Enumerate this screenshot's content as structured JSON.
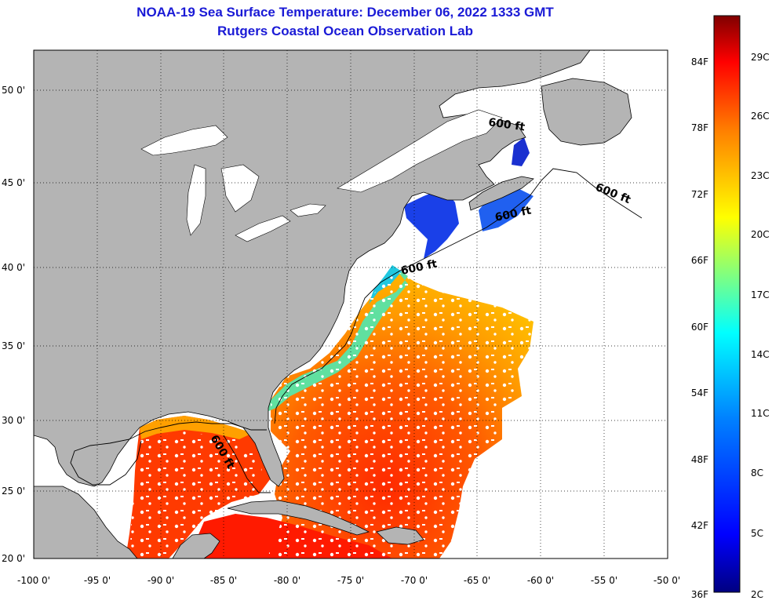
{
  "header": {
    "title": "NOAA-19 Sea Surface Temperature:  December 06, 2022 1333 GMT",
    "subtitle": "Rutgers Coastal Ocean Observation Lab"
  },
  "map": {
    "lat_labels": [
      "50 0'",
      "45 0'",
      "40 0'",
      "35 0'",
      "30 0'",
      "25 0'",
      "20 0'"
    ],
    "lon_labels": [
      "-100 0'",
      "-95 0'",
      "-90 0'",
      "-85 0'",
      "-80 0'",
      "-75 0'",
      "-70 0'",
      "-65 0'",
      "-60 0'",
      "-55 0'",
      "-50 0'"
    ],
    "contour_label": "600 ft",
    "colors": {
      "land": "#b4b4b4",
      "water_nodata": "#ffffff",
      "gridline": "#000000"
    }
  },
  "colorbar": {
    "fahrenheit_labels": [
      "84F",
      "78F",
      "72F",
      "66F",
      "60F",
      "54F",
      "48F",
      "42F",
      "36F"
    ],
    "celsius_labels": [
      "29C",
      "26C",
      "23C",
      "20C",
      "17C",
      "14C",
      "11C",
      "8C",
      "5C",
      "2C"
    ],
    "stops": [
      "#000080",
      "#0000ff",
      "#0080ff",
      "#00ffff",
      "#80ff80",
      "#ffff00",
      "#ff8000",
      "#ff0000",
      "#800000"
    ]
  }
}
